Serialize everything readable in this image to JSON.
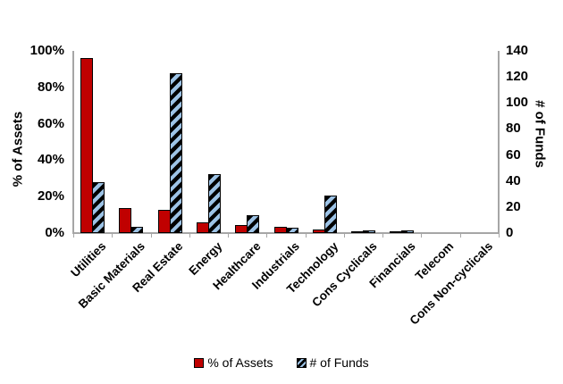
{
  "colors": {
    "assets_red": "#C00000",
    "funds_fill_blue": "#9DC3E6",
    "funds_stripe_black": "#000000",
    "axis_line_gray": "#A6A6A6",
    "text_black": "#000000"
  },
  "chart_data": {
    "type": "bar",
    "subtype": "dual-axis-grouped-bar",
    "title": "",
    "categories": [
      "Utilities",
      "Basic Materials",
      "Real Estate",
      "Energy",
      "Healthcare",
      "Industrials",
      "Technology",
      "Cons Cyclicals",
      "Financials",
      "Telecom",
      "Cons Non-cyclicals"
    ],
    "series": [
      {
        "name": "% of Assets",
        "axis": "left",
        "style": "solid-red",
        "values": [
          96,
          13.5,
          12.5,
          6,
          4.5,
          3.5,
          2,
          1,
          1,
          0,
          0
        ]
      },
      {
        "name": "# of Funds",
        "axis": "right",
        "style": "black-blue-diagonal-hatch",
        "values": [
          39,
          5,
          123,
          45,
          14,
          4,
          29,
          2,
          2,
          0,
          0
        ]
      }
    ],
    "left_axis": {
      "label": "% of Assets",
      "ticks": [
        "0%",
        "20%",
        "40%",
        "60%",
        "80%",
        "100%"
      ],
      "min": 0,
      "max": 100
    },
    "right_axis": {
      "label": "# of Funds",
      "ticks": [
        "0",
        "20",
        "40",
        "60",
        "80",
        "100",
        "120",
        "140"
      ],
      "min": 0,
      "max": 140
    },
    "x_axis": {
      "label": "",
      "tick_rotation_deg": 45
    },
    "legend": {
      "position": "bottom-center",
      "entries": [
        "% of Assets",
        "# of Funds"
      ]
    },
    "grid": "off",
    "background": "#FFFFFF"
  }
}
